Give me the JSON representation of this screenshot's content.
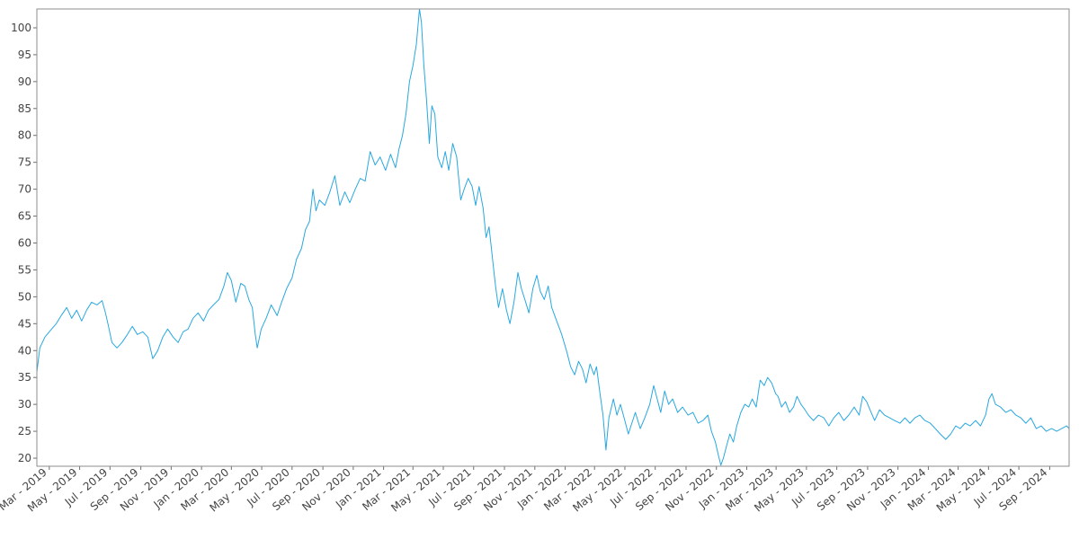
{
  "chart_data": {
    "type": "line",
    "title": "",
    "xlabel": "",
    "ylabel": "",
    "grid": false,
    "legend": "none",
    "x_range": [
      "2019-02-04",
      "2024-10-10"
    ],
    "ylim": [
      18.5,
      103.5
    ],
    "y_ticks": [
      20,
      25,
      30,
      35,
      40,
      45,
      50,
      55,
      60,
      65,
      70,
      75,
      80,
      85,
      90,
      95,
      100
    ],
    "x_ticks": [
      {
        "date": "2019-03-01",
        "label": "Mar - 2019"
      },
      {
        "date": "2019-05-01",
        "label": "May - 2019"
      },
      {
        "date": "2019-07-01",
        "label": "Jul - 2019"
      },
      {
        "date": "2019-09-01",
        "label": "Sep - 2019"
      },
      {
        "date": "2019-11-01",
        "label": "Nov - 2019"
      },
      {
        "date": "2020-01-01",
        "label": "Jan - 2020"
      },
      {
        "date": "2020-03-01",
        "label": "Mar - 2020"
      },
      {
        "date": "2020-05-01",
        "label": "May - 2020"
      },
      {
        "date": "2020-07-01",
        "label": "Jul - 2020"
      },
      {
        "date": "2020-09-01",
        "label": "Sep - 2020"
      },
      {
        "date": "2020-11-01",
        "label": "Nov - 2020"
      },
      {
        "date": "2021-01-01",
        "label": "Jan - 2021"
      },
      {
        "date": "2021-03-01",
        "label": "Mar - 2021"
      },
      {
        "date": "2021-05-01",
        "label": "May - 2021"
      },
      {
        "date": "2021-07-01",
        "label": "Jul - 2021"
      },
      {
        "date": "2021-09-01",
        "label": "Sep - 2021"
      },
      {
        "date": "2021-11-01",
        "label": "Nov - 2021"
      },
      {
        "date": "2022-01-01",
        "label": "Jan - 2022"
      },
      {
        "date": "2022-03-01",
        "label": "Mar - 2022"
      },
      {
        "date": "2022-05-01",
        "label": "May - 2022"
      },
      {
        "date": "2022-07-01",
        "label": "Jul - 2022"
      },
      {
        "date": "2022-09-01",
        "label": "Sep - 2022"
      },
      {
        "date": "2022-11-01",
        "label": "Nov - 2022"
      },
      {
        "date": "2023-01-01",
        "label": "Jan - 2023"
      },
      {
        "date": "2023-03-01",
        "label": "Mar - 2023"
      },
      {
        "date": "2023-05-01",
        "label": "May - 2023"
      },
      {
        "date": "2023-07-01",
        "label": "Jul - 2023"
      },
      {
        "date": "2023-09-01",
        "label": "Sep - 2023"
      },
      {
        "date": "2023-11-01",
        "label": "Nov - 2023"
      },
      {
        "date": "2024-01-01",
        "label": "Jan - 2024"
      },
      {
        "date": "2024-03-01",
        "label": "Mar - 2024"
      },
      {
        "date": "2024-05-01",
        "label": "May - 2024"
      },
      {
        "date": "2024-07-01",
        "label": "Jul - 2024"
      },
      {
        "date": "2024-09-01",
        "label": "Sep - 2024"
      }
    ],
    "series": [
      {
        "color": "#29a8e0",
        "points": [
          [
            "2019-02-04",
            36.0
          ],
          [
            "2019-02-10",
            40.5
          ],
          [
            "2019-02-20",
            42.5
          ],
          [
            "2019-03-01",
            43.5
          ],
          [
            "2019-03-15",
            45.0
          ],
          [
            "2019-03-25",
            46.5
          ],
          [
            "2019-04-05",
            48.0
          ],
          [
            "2019-04-15",
            46.0
          ],
          [
            "2019-04-25",
            47.5
          ],
          [
            "2019-05-05",
            45.5
          ],
          [
            "2019-05-15",
            47.5
          ],
          [
            "2019-05-25",
            49.0
          ],
          [
            "2019-06-05",
            48.5
          ],
          [
            "2019-06-15",
            49.3
          ],
          [
            "2019-06-22",
            47.0
          ],
          [
            "2019-06-28",
            44.5
          ],
          [
            "2019-07-05",
            41.5
          ],
          [
            "2019-07-15",
            40.5
          ],
          [
            "2019-07-25",
            41.5
          ],
          [
            "2019-08-05",
            43.0
          ],
          [
            "2019-08-15",
            44.5
          ],
          [
            "2019-08-25",
            43.0
          ],
          [
            "2019-09-05",
            43.5
          ],
          [
            "2019-09-15",
            42.5
          ],
          [
            "2019-09-25",
            38.5
          ],
          [
            "2019-10-05",
            40.0
          ],
          [
            "2019-10-15",
            42.5
          ],
          [
            "2019-10-25",
            44.0
          ],
          [
            "2019-11-05",
            42.5
          ],
          [
            "2019-11-15",
            41.5
          ],
          [
            "2019-11-25",
            43.5
          ],
          [
            "2019-12-05",
            44.0
          ],
          [
            "2019-12-15",
            46.0
          ],
          [
            "2019-12-25",
            47.0
          ],
          [
            "2020-01-05",
            45.5
          ],
          [
            "2020-01-15",
            47.5
          ],
          [
            "2020-01-25",
            48.5
          ],
          [
            "2020-02-05",
            49.5
          ],
          [
            "2020-02-15",
            52.0
          ],
          [
            "2020-02-22",
            54.5
          ],
          [
            "2020-03-01",
            53.0
          ],
          [
            "2020-03-10",
            49.0
          ],
          [
            "2020-03-20",
            52.5
          ],
          [
            "2020-03-28",
            52.0
          ],
          [
            "2020-04-05",
            49.5
          ],
          [
            "2020-04-12",
            48.0
          ],
          [
            "2020-04-18",
            43.0
          ],
          [
            "2020-04-22",
            40.5
          ],
          [
            "2020-04-30",
            44.0
          ],
          [
            "2020-05-10",
            46.0
          ],
          [
            "2020-05-20",
            48.5
          ],
          [
            "2020-06-01",
            46.5
          ],
          [
            "2020-06-10",
            49.0
          ],
          [
            "2020-06-20",
            51.5
          ],
          [
            "2020-07-01",
            53.5
          ],
          [
            "2020-07-10",
            57.0
          ],
          [
            "2020-07-20",
            59.0
          ],
          [
            "2020-07-28",
            62.5
          ],
          [
            "2020-08-05",
            64.0
          ],
          [
            "2020-08-12",
            70.0
          ],
          [
            "2020-08-18",
            66.0
          ],
          [
            "2020-08-25",
            68.0
          ],
          [
            "2020-09-05",
            67.0
          ],
          [
            "2020-09-15",
            69.5
          ],
          [
            "2020-09-25",
            72.5
          ],
          [
            "2020-10-05",
            67.0
          ],
          [
            "2020-10-15",
            69.5
          ],
          [
            "2020-10-25",
            67.5
          ],
          [
            "2020-11-05",
            70.0
          ],
          [
            "2020-11-15",
            72.0
          ],
          [
            "2020-11-25",
            71.5
          ],
          [
            "2020-12-05",
            77.0
          ],
          [
            "2020-12-15",
            74.5
          ],
          [
            "2020-12-25",
            76.0
          ],
          [
            "2021-01-05",
            73.5
          ],
          [
            "2021-01-15",
            76.5
          ],
          [
            "2021-01-25",
            74.0
          ],
          [
            "2021-02-01",
            77.5
          ],
          [
            "2021-02-08",
            80.0
          ],
          [
            "2021-02-15",
            84.0
          ],
          [
            "2021-02-22",
            90.0
          ],
          [
            "2021-03-01",
            93.0
          ],
          [
            "2021-03-08",
            97.0
          ],
          [
            "2021-03-14",
            103.5
          ],
          [
            "2021-03-18",
            101.0
          ],
          [
            "2021-03-23",
            93.0
          ],
          [
            "2021-03-28",
            87.0
          ],
          [
            "2021-04-03",
            78.5
          ],
          [
            "2021-04-08",
            85.5
          ],
          [
            "2021-04-14",
            84.0
          ],
          [
            "2021-04-20",
            76.0
          ],
          [
            "2021-04-28",
            74.0
          ],
          [
            "2021-05-05",
            77.0
          ],
          [
            "2021-05-12",
            73.5
          ],
          [
            "2021-05-20",
            78.5
          ],
          [
            "2021-05-28",
            76.0
          ],
          [
            "2021-06-05",
            68.0
          ],
          [
            "2021-06-12",
            70.0
          ],
          [
            "2021-06-20",
            72.0
          ],
          [
            "2021-06-28",
            70.5
          ],
          [
            "2021-07-05",
            67.0
          ],
          [
            "2021-07-12",
            70.5
          ],
          [
            "2021-07-20",
            66.5
          ],
          [
            "2021-07-26",
            61.0
          ],
          [
            "2021-08-01",
            63.0
          ],
          [
            "2021-08-08",
            57.0
          ],
          [
            "2021-08-14",
            52.0
          ],
          [
            "2021-08-20",
            48.0
          ],
          [
            "2021-08-28",
            51.5
          ],
          [
            "2021-09-05",
            47.5
          ],
          [
            "2021-09-12",
            45.0
          ],
          [
            "2021-09-20",
            49.0
          ],
          [
            "2021-09-28",
            54.5
          ],
          [
            "2021-10-05",
            51.5
          ],
          [
            "2021-10-12",
            49.5
          ],
          [
            "2021-10-20",
            47.0
          ],
          [
            "2021-10-28",
            51.5
          ],
          [
            "2021-11-05",
            54.0
          ],
          [
            "2021-11-12",
            51.0
          ],
          [
            "2021-11-20",
            49.5
          ],
          [
            "2021-11-28",
            52.0
          ],
          [
            "2021-12-05",
            48.0
          ],
          [
            "2021-12-15",
            45.5
          ],
          [
            "2021-12-25",
            43.0
          ],
          [
            "2022-01-05",
            39.5
          ],
          [
            "2022-01-12",
            37.0
          ],
          [
            "2022-01-20",
            35.5
          ],
          [
            "2022-01-28",
            38.0
          ],
          [
            "2022-02-05",
            36.5
          ],
          [
            "2022-02-12",
            34.0
          ],
          [
            "2022-02-20",
            37.5
          ],
          [
            "2022-02-28",
            35.5
          ],
          [
            "2022-03-05",
            37.0
          ],
          [
            "2022-03-12",
            32.0
          ],
          [
            "2022-03-18",
            28.0
          ],
          [
            "2022-03-24",
            21.5
          ],
          [
            "2022-03-30",
            27.5
          ],
          [
            "2022-04-08",
            31.0
          ],
          [
            "2022-04-15",
            28.0
          ],
          [
            "2022-04-22",
            30.0
          ],
          [
            "2022-05-01",
            27.0
          ],
          [
            "2022-05-08",
            24.5
          ],
          [
            "2022-05-15",
            26.5
          ],
          [
            "2022-05-22",
            28.5
          ],
          [
            "2022-06-01",
            25.5
          ],
          [
            "2022-06-10",
            27.5
          ],
          [
            "2022-06-20",
            30.0
          ],
          [
            "2022-06-28",
            33.5
          ],
          [
            "2022-07-05",
            31.0
          ],
          [
            "2022-07-12",
            28.5
          ],
          [
            "2022-07-20",
            32.5
          ],
          [
            "2022-07-28",
            30.0
          ],
          [
            "2022-08-05",
            31.0
          ],
          [
            "2022-08-15",
            28.5
          ],
          [
            "2022-08-25",
            29.5
          ],
          [
            "2022-09-05",
            28.0
          ],
          [
            "2022-09-15",
            28.5
          ],
          [
            "2022-09-25",
            26.5
          ],
          [
            "2022-10-05",
            27.0
          ],
          [
            "2022-10-15",
            28.0
          ],
          [
            "2022-10-22",
            25.0
          ],
          [
            "2022-10-30",
            23.0
          ],
          [
            "2022-11-05",
            20.5
          ],
          [
            "2022-11-10",
            18.7
          ],
          [
            "2022-11-15",
            20.0
          ],
          [
            "2022-11-22",
            22.5
          ],
          [
            "2022-11-28",
            24.5
          ],
          [
            "2022-12-05",
            23.0
          ],
          [
            "2022-12-12",
            26.0
          ],
          [
            "2022-12-20",
            28.5
          ],
          [
            "2022-12-28",
            30.0
          ],
          [
            "2023-01-05",
            29.5
          ],
          [
            "2023-01-12",
            31.0
          ],
          [
            "2023-01-20",
            29.5
          ],
          [
            "2023-01-28",
            34.5
          ],
          [
            "2023-02-05",
            33.5
          ],
          [
            "2023-02-12",
            35.0
          ],
          [
            "2023-02-20",
            34.0
          ],
          [
            "2023-02-28",
            32.0
          ],
          [
            "2023-03-05",
            31.5
          ],
          [
            "2023-03-12",
            29.5
          ],
          [
            "2023-03-20",
            30.5
          ],
          [
            "2023-03-28",
            28.5
          ],
          [
            "2023-04-05",
            29.5
          ],
          [
            "2023-04-12",
            31.5
          ],
          [
            "2023-04-20",
            30.0
          ],
          [
            "2023-04-28",
            29.0
          ],
          [
            "2023-05-05",
            28.0
          ],
          [
            "2023-05-15",
            27.0
          ],
          [
            "2023-05-25",
            28.0
          ],
          [
            "2023-06-05",
            27.5
          ],
          [
            "2023-06-15",
            26.0
          ],
          [
            "2023-06-25",
            27.5
          ],
          [
            "2023-07-05",
            28.5
          ],
          [
            "2023-07-15",
            27.0
          ],
          [
            "2023-07-25",
            28.0
          ],
          [
            "2023-08-05",
            29.5
          ],
          [
            "2023-08-15",
            28.0
          ],
          [
            "2023-08-22",
            31.5
          ],
          [
            "2023-08-30",
            30.5
          ],
          [
            "2023-09-08",
            28.5
          ],
          [
            "2023-09-15",
            27.0
          ],
          [
            "2023-09-25",
            29.0
          ],
          [
            "2023-10-05",
            28.0
          ],
          [
            "2023-10-15",
            27.5
          ],
          [
            "2023-10-25",
            27.0
          ],
          [
            "2023-11-05",
            26.5
          ],
          [
            "2023-11-15",
            27.5
          ],
          [
            "2023-11-25",
            26.5
          ],
          [
            "2023-12-05",
            27.5
          ],
          [
            "2023-12-15",
            28.0
          ],
          [
            "2023-12-25",
            27.0
          ],
          [
            "2024-01-05",
            26.5
          ],
          [
            "2024-01-15",
            25.5
          ],
          [
            "2024-01-25",
            24.5
          ],
          [
            "2024-02-05",
            23.5
          ],
          [
            "2024-02-15",
            24.5
          ],
          [
            "2024-02-25",
            26.0
          ],
          [
            "2024-03-05",
            25.5
          ],
          [
            "2024-03-15",
            26.5
          ],
          [
            "2024-03-25",
            26.0
          ],
          [
            "2024-04-05",
            27.0
          ],
          [
            "2024-04-15",
            26.0
          ],
          [
            "2024-04-25",
            28.0
          ],
          [
            "2024-05-02",
            31.0
          ],
          [
            "2024-05-08",
            32.0
          ],
          [
            "2024-05-15",
            30.0
          ],
          [
            "2024-05-25",
            29.5
          ],
          [
            "2024-06-05",
            28.5
          ],
          [
            "2024-06-15",
            29.0
          ],
          [
            "2024-06-25",
            28.0
          ],
          [
            "2024-07-05",
            27.5
          ],
          [
            "2024-07-15",
            26.5
          ],
          [
            "2024-07-25",
            27.5
          ],
          [
            "2024-08-05",
            25.5
          ],
          [
            "2024-08-15",
            26.0
          ],
          [
            "2024-08-25",
            25.0
          ],
          [
            "2024-09-05",
            25.5
          ],
          [
            "2024-09-15",
            25.0
          ],
          [
            "2024-09-25",
            25.5
          ],
          [
            "2024-10-05",
            26.0
          ],
          [
            "2024-10-10",
            25.5
          ]
        ]
      }
    ]
  }
}
